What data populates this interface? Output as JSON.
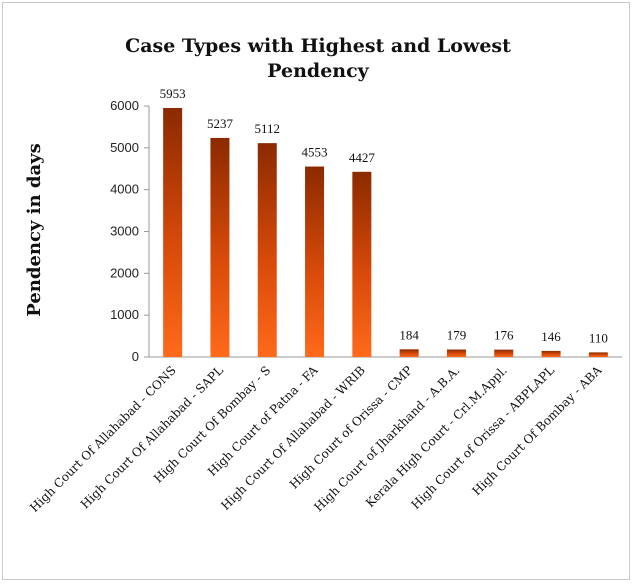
{
  "chart_data": {
    "type": "bar",
    "title_lines": [
      "Case Types with Highest and Lowest",
      "Pendency"
    ],
    "ylabel": "Pendency in days",
    "xlabel": "",
    "ylim": [
      0,
      6000
    ],
    "yticks": [
      0,
      1000,
      2000,
      3000,
      4000,
      5000,
      6000
    ],
    "grid": false,
    "legend": "none",
    "categories": [
      "High Court Of Allahabad - CONS",
      "High Court Of Allahabad - SAPL",
      "High Court Of Bombay - S",
      "High Court of Patna - FA",
      "High Court Of Allahabad - WRIB",
      "High Court of Orissa - CMP",
      "High Court of Jharkhand - A.B.A.",
      "Kerala High Court - Crl.M.Appl.",
      "High Court of Orissa - ABPLAPL",
      "High Court Of Bombay - ABA"
    ],
    "values": [
      5953,
      5237,
      5112,
      4553,
      4427,
      184,
      179,
      176,
      146,
      110
    ],
    "colors": {
      "bar_dark": "#8b2a00",
      "bar_mid": "#d84a0a",
      "bar_light": "#ff6a1a",
      "axis": "#9a9a9a"
    }
  }
}
